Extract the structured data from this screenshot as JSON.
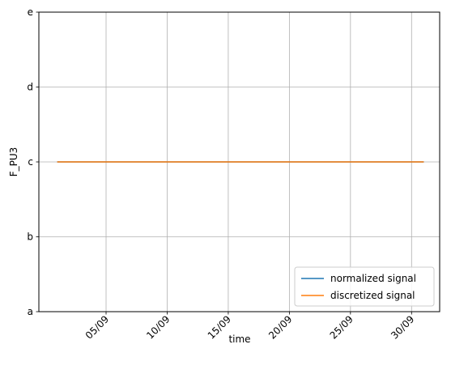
{
  "chart_data": {
    "type": "line",
    "title": "",
    "xlabel": "time",
    "ylabel": "F_PU3",
    "x_ticks": [
      "05/09",
      "10/09",
      "15/09",
      "20/09",
      "25/09",
      "30/09"
    ],
    "x_tick_values": [
      5,
      10,
      15,
      20,
      25,
      30
    ],
    "xlim": [
      -0.5,
      32.3
    ],
    "y_categories": [
      "a",
      "b",
      "c",
      "d",
      "e"
    ],
    "ylim": [
      0,
      4
    ],
    "grid": true,
    "legend_position": "lower right",
    "series": [
      {
        "name": "normalized signal",
        "color": "#1f77b4",
        "x": [
          1,
          31
        ],
        "y": [
          "c",
          "c"
        ]
      },
      {
        "name": "discretized signal",
        "color": "#ff7f0e",
        "x": [
          1,
          31
        ],
        "y": [
          "c",
          "c"
        ]
      }
    ]
  }
}
